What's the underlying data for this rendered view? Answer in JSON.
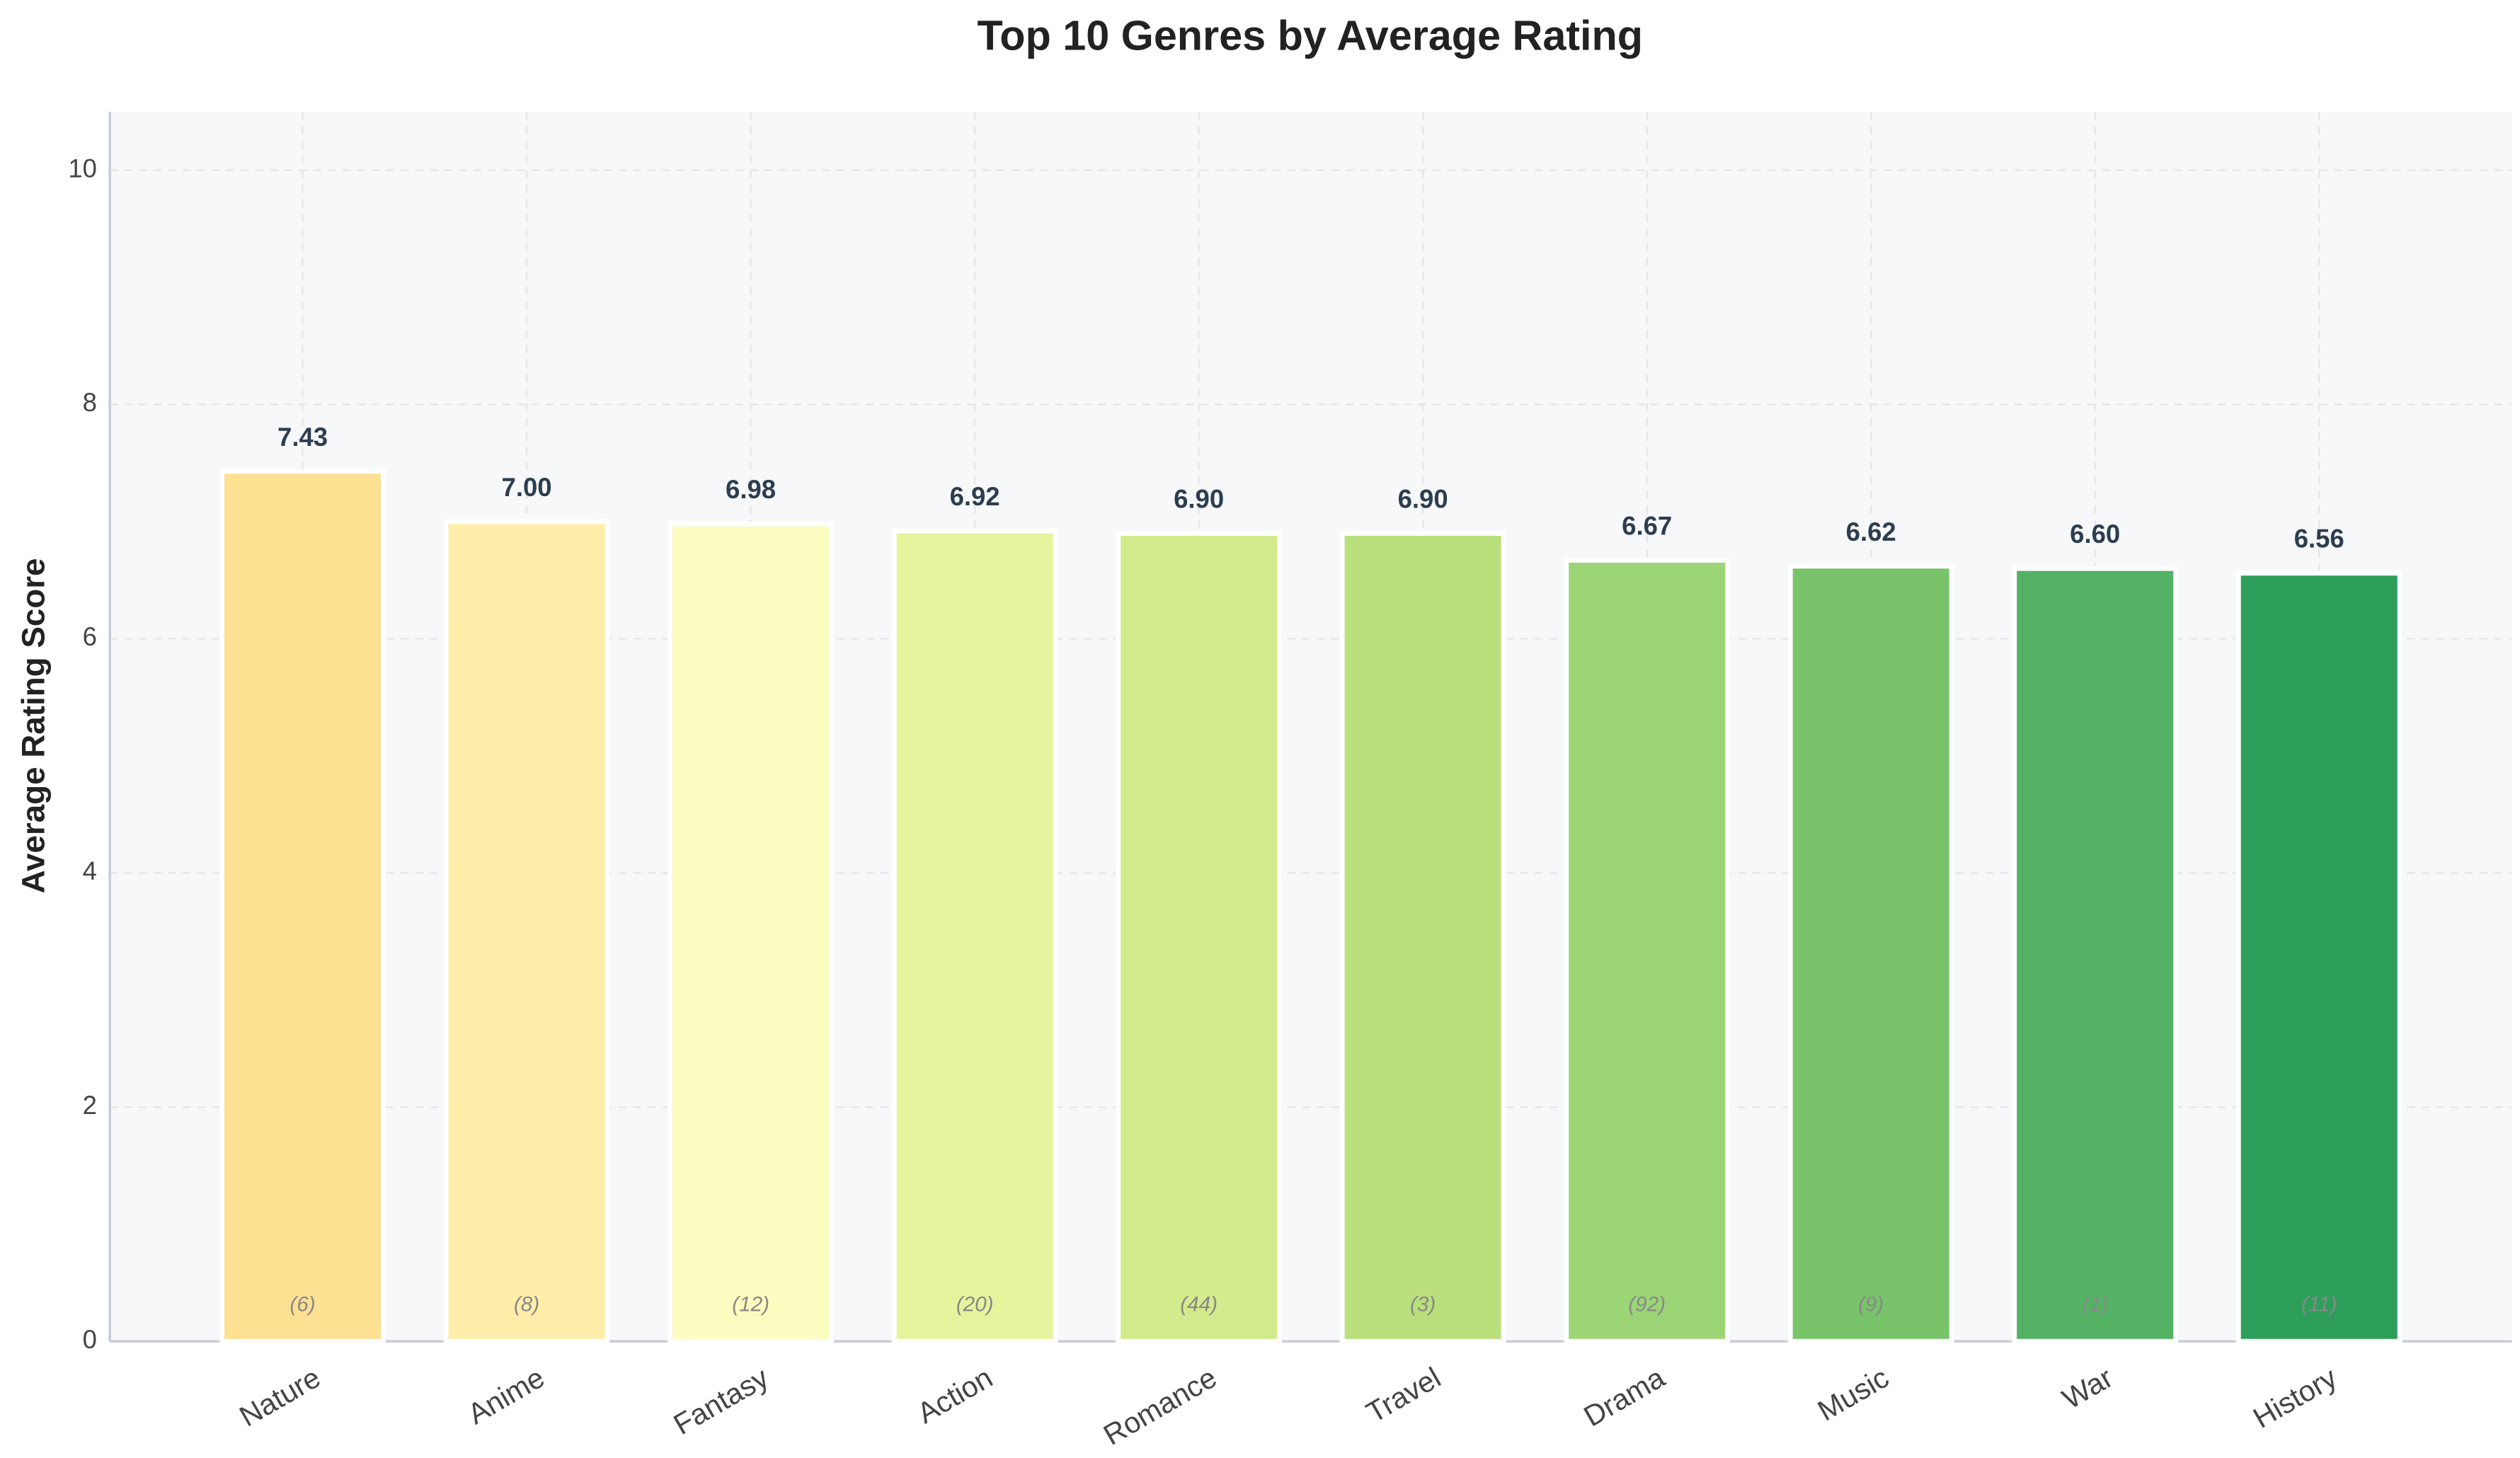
{
  "chart_data": {
    "type": "bar",
    "title": "Top 10 Genres by Average Rating",
    "ylabel": "Average Rating Score",
    "categories": [
      "Nature",
      "Anime",
      "Fantasy",
      "Action",
      "Romance",
      "Travel",
      "Drama",
      "Music",
      "War",
      "History"
    ],
    "values": [
      7.43,
      7.0,
      6.98,
      6.92,
      6.9,
      6.9,
      6.67,
      6.62,
      6.6,
      6.56
    ],
    "value_labels": [
      "7.43",
      "7.00",
      "6.98",
      "6.92",
      "6.90",
      "6.90",
      "6.67",
      "6.62",
      "6.60",
      "6.56"
    ],
    "annotations": [
      "(6)",
      "(8)",
      "(12)",
      "(20)",
      "(44)",
      "(3)",
      "(92)",
      "(9)",
      "(1)",
      "(11)"
    ],
    "colors": [
      "#fde092",
      "#feeeaa",
      "#fbfcbf",
      "#e6f49d",
      "#d2eb8c",
      "#b9e07c",
      "#9cd576",
      "#79c46a",
      "#54b264",
      "#2e9e5b"
    ],
    "ylim": [
      0,
      10.5
    ],
    "yticks": [
      0,
      2,
      4,
      6,
      8,
      10
    ],
    "grid": true
  }
}
